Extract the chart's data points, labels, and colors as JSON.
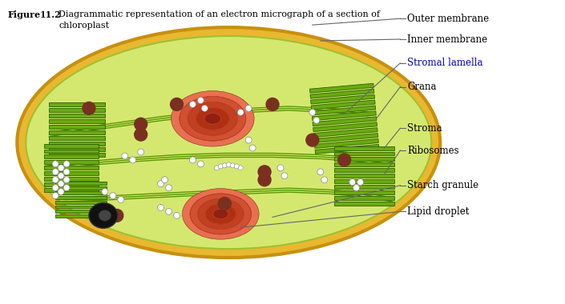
{
  "bg_color": "#ffffff",
  "outer_color": "#e8b830",
  "outer_edge": "#c89010",
  "inner_color": "#d4e870",
  "inner_edge": "#a0c030",
  "stroma_color": "#cce060",
  "grana_fill": "#6aaa10",
  "grana_edge": "#2a6000",
  "lamella_color": "#5a9800",
  "spiral_colors": [
    "#e87050",
    "#d05030",
    "#c04020",
    "#b03010",
    "#902010"
  ],
  "brown_dot": "#7a3020",
  "nucleus_fill": "#1a1a1a",
  "nucleus_edge": "#333333",
  "line_color": "#666666",
  "label_color": "#000000",
  "stromal_label_color": "#0000bb",
  "caption_bold": "Figure  11.2",
  "caption_normal": "Diagrammatic representation of an electron micrograph of a section of",
  "caption_normal2": "chloroplast",
  "labels": [
    "Outer membrane",
    "Inner membrane",
    "Stromal lamella",
    "Grana",
    "Stroma",
    "Ribosomes",
    "Starch granule",
    "Lipid droplet"
  ]
}
